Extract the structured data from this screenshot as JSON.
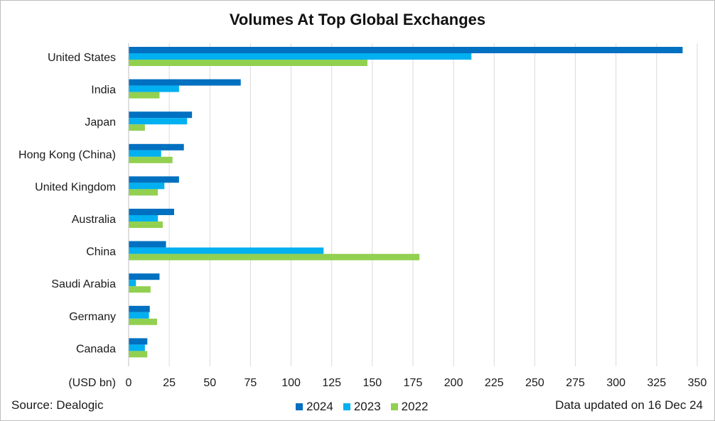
{
  "chart_data": {
    "type": "bar",
    "orientation": "horizontal",
    "title": "Volumes At Top Global Exchanges",
    "xlabel": "(USD bn)",
    "ylabel": "",
    "categories": [
      "United States",
      "India",
      "Japan",
      "Hong Kong (China)",
      "United Kingdom",
      "Australia",
      "China",
      "Saudi Arabia",
      "Germany",
      "Canada"
    ],
    "series": [
      {
        "name": "2024",
        "color": "#0070c0",
        "values": [
          341,
          69,
          39,
          34,
          31,
          28,
          23,
          19,
          13,
          11.5
        ]
      },
      {
        "name": "2023",
        "color": "#00b0f0",
        "values": [
          211,
          31,
          36,
          20,
          22,
          18,
          120,
          4.5,
          12.5,
          10
        ]
      },
      {
        "name": "2022",
        "color": "#92d050",
        "values": [
          147,
          19,
          10,
          27,
          18,
          21,
          179,
          13.5,
          17.5,
          11.5
        ]
      }
    ],
    "xlim": [
      0,
      350
    ],
    "x_ticks": [
      "0",
      "25",
      "50",
      "75",
      "100",
      "125",
      "150",
      "175",
      "200",
      "225",
      "250",
      "275",
      "300",
      "325",
      "350"
    ],
    "grid": "vertical",
    "legend_position": "bottom"
  },
  "footer": {
    "source": "Source: Dealogic",
    "updated": "Data updated on 16 Dec 24"
  }
}
